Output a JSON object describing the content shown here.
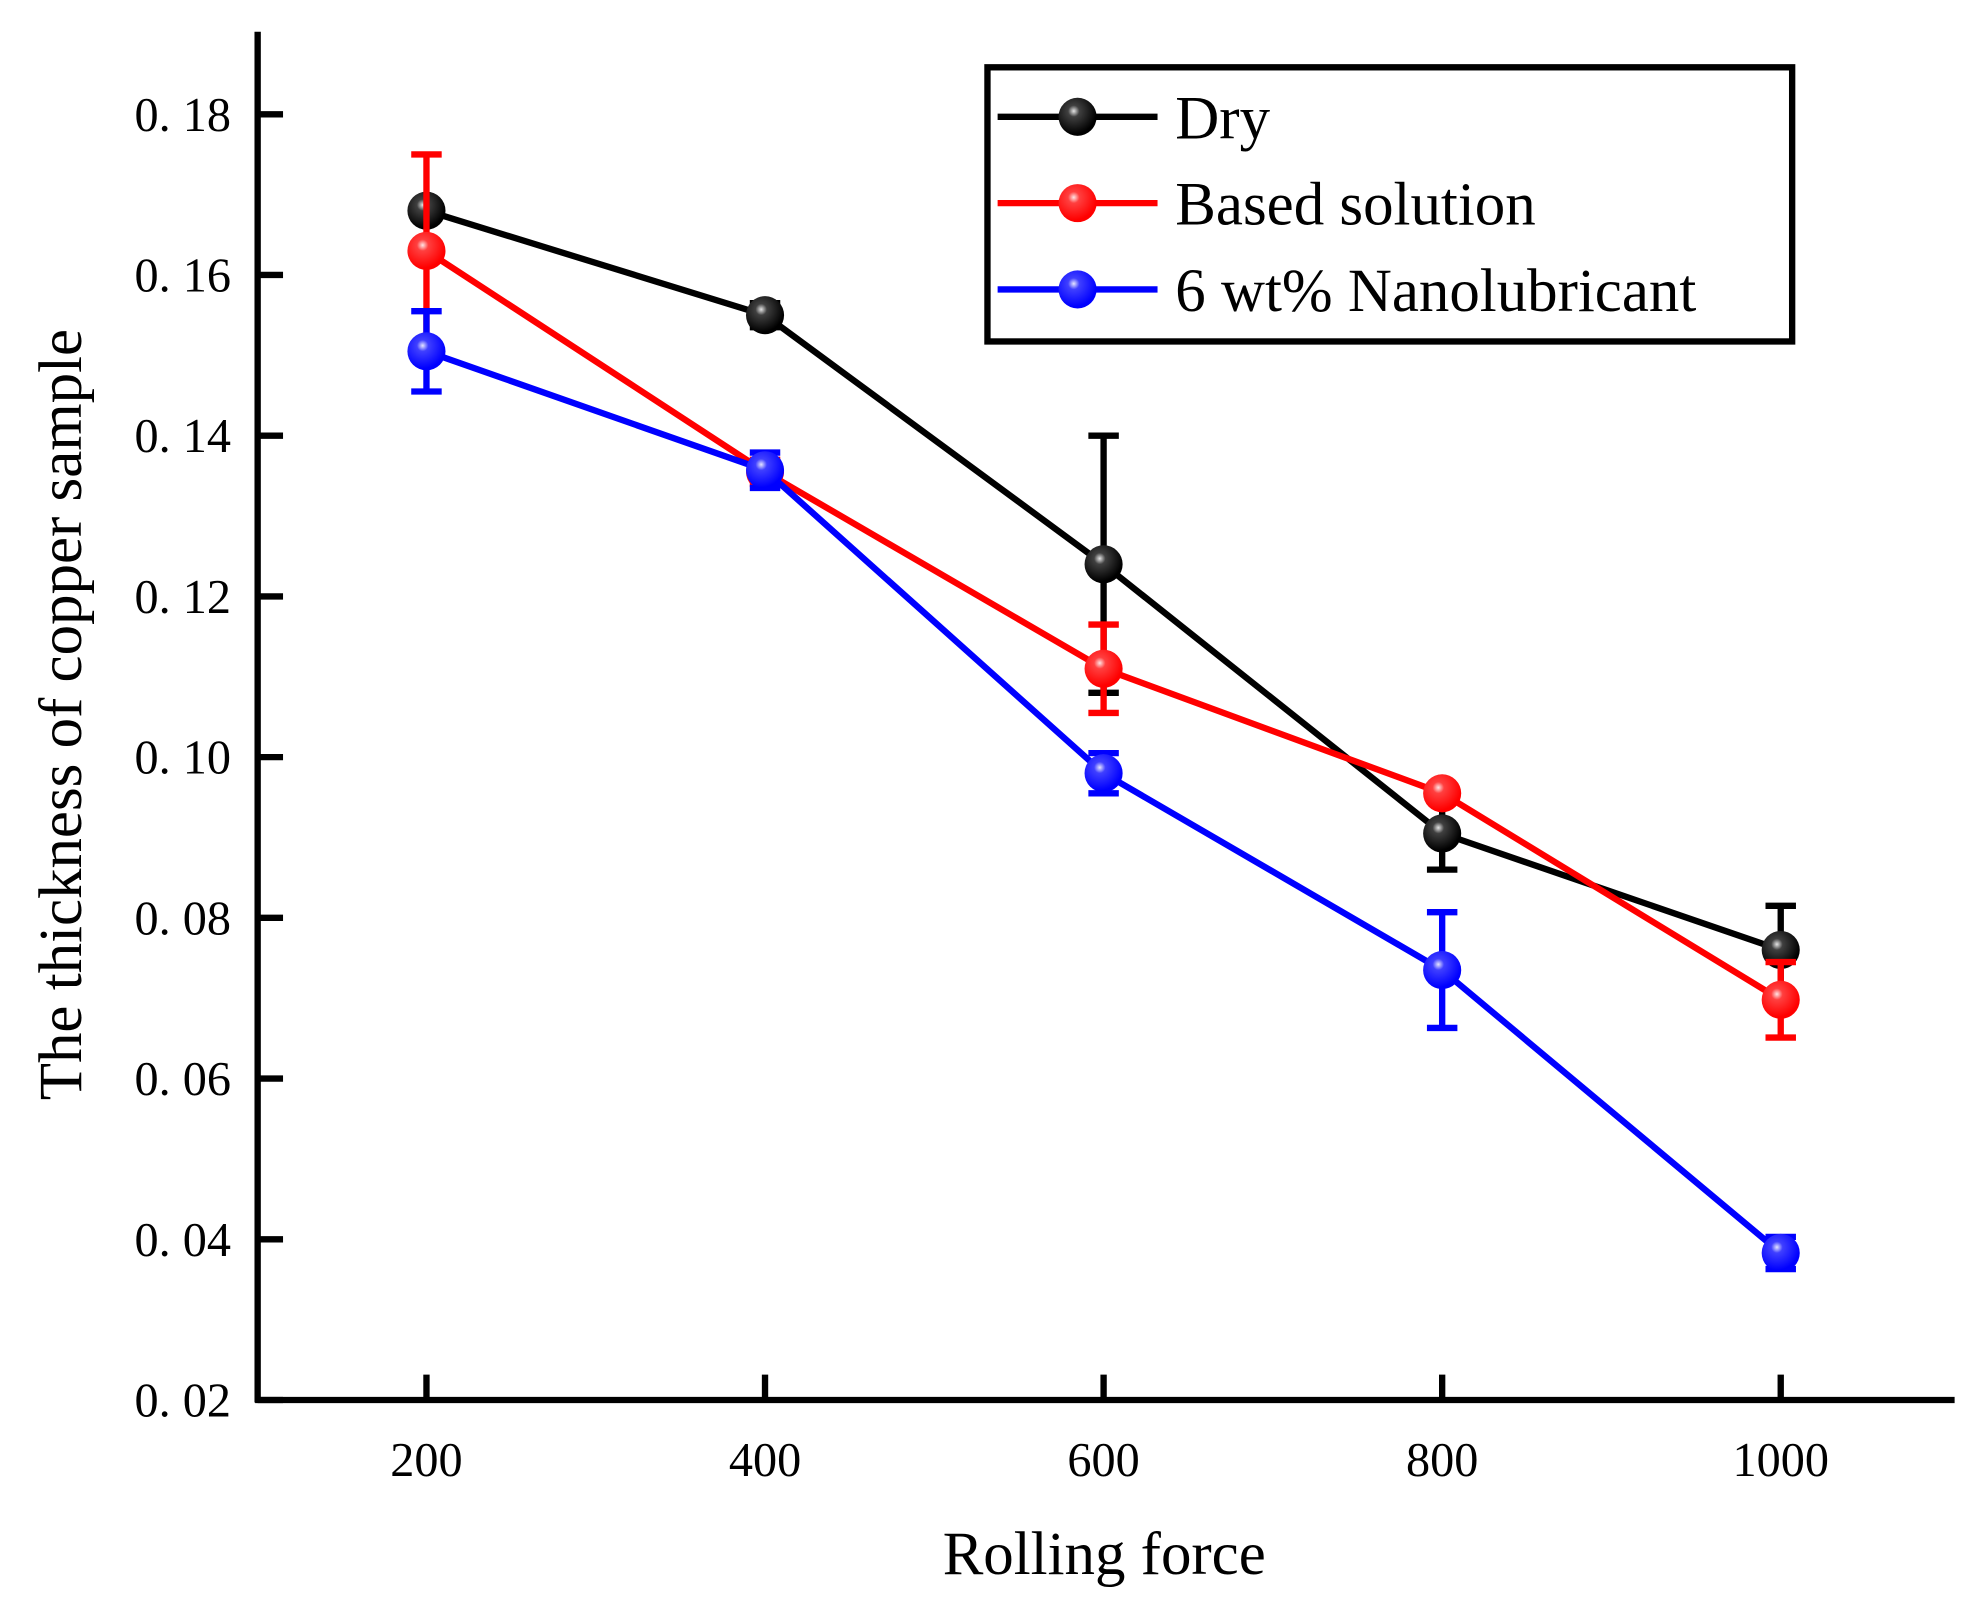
{
  "chart_data": {
    "type": "line",
    "title": "",
    "xlabel": "Rolling force",
    "ylabel": "The thickness of copper sample",
    "x": [
      200,
      400,
      600,
      800,
      1000
    ],
    "xlim": [
      100,
      1100
    ],
    "ylim": [
      0.02,
      0.19
    ],
    "xticks": [
      "200",
      "400",
      "600",
      "800",
      "1000"
    ],
    "yticks": [
      "0. 02",
      "0. 04",
      "0. 06",
      "0. 08",
      "0. 10",
      "0. 12",
      "0. 14",
      "0. 16",
      "0. 18"
    ],
    "ytick_values": [
      0.02,
      0.04,
      0.06,
      0.08,
      0.1,
      0.12,
      0.14,
      0.16,
      0.18
    ],
    "grid": false,
    "legend_position": "top-right",
    "series": [
      {
        "name": "Dry",
        "color": "#000000",
        "values": [
          0.168,
          0.155,
          0.124,
          0.0905,
          0.076
        ],
        "errors": [
          0.001,
          0.0015,
          0.016,
          0.0045,
          0.0055
        ]
      },
      {
        "name": "Based solution",
        "color": "#ff0000",
        "values": [
          0.163,
          0.1355,
          0.111,
          0.0955,
          0.0698
        ],
        "errors": [
          0.012,
          0.0015,
          0.0055,
          0.0005,
          0.0047
        ]
      },
      {
        "name": "6 wt% Nanolubricant",
        "color": "#0000ff",
        "values": [
          0.1505,
          0.1357,
          0.098,
          0.0735,
          0.0383
        ],
        "errors": [
          0.005,
          0.0022,
          0.0025,
          0.0072,
          0.002
        ]
      }
    ]
  }
}
